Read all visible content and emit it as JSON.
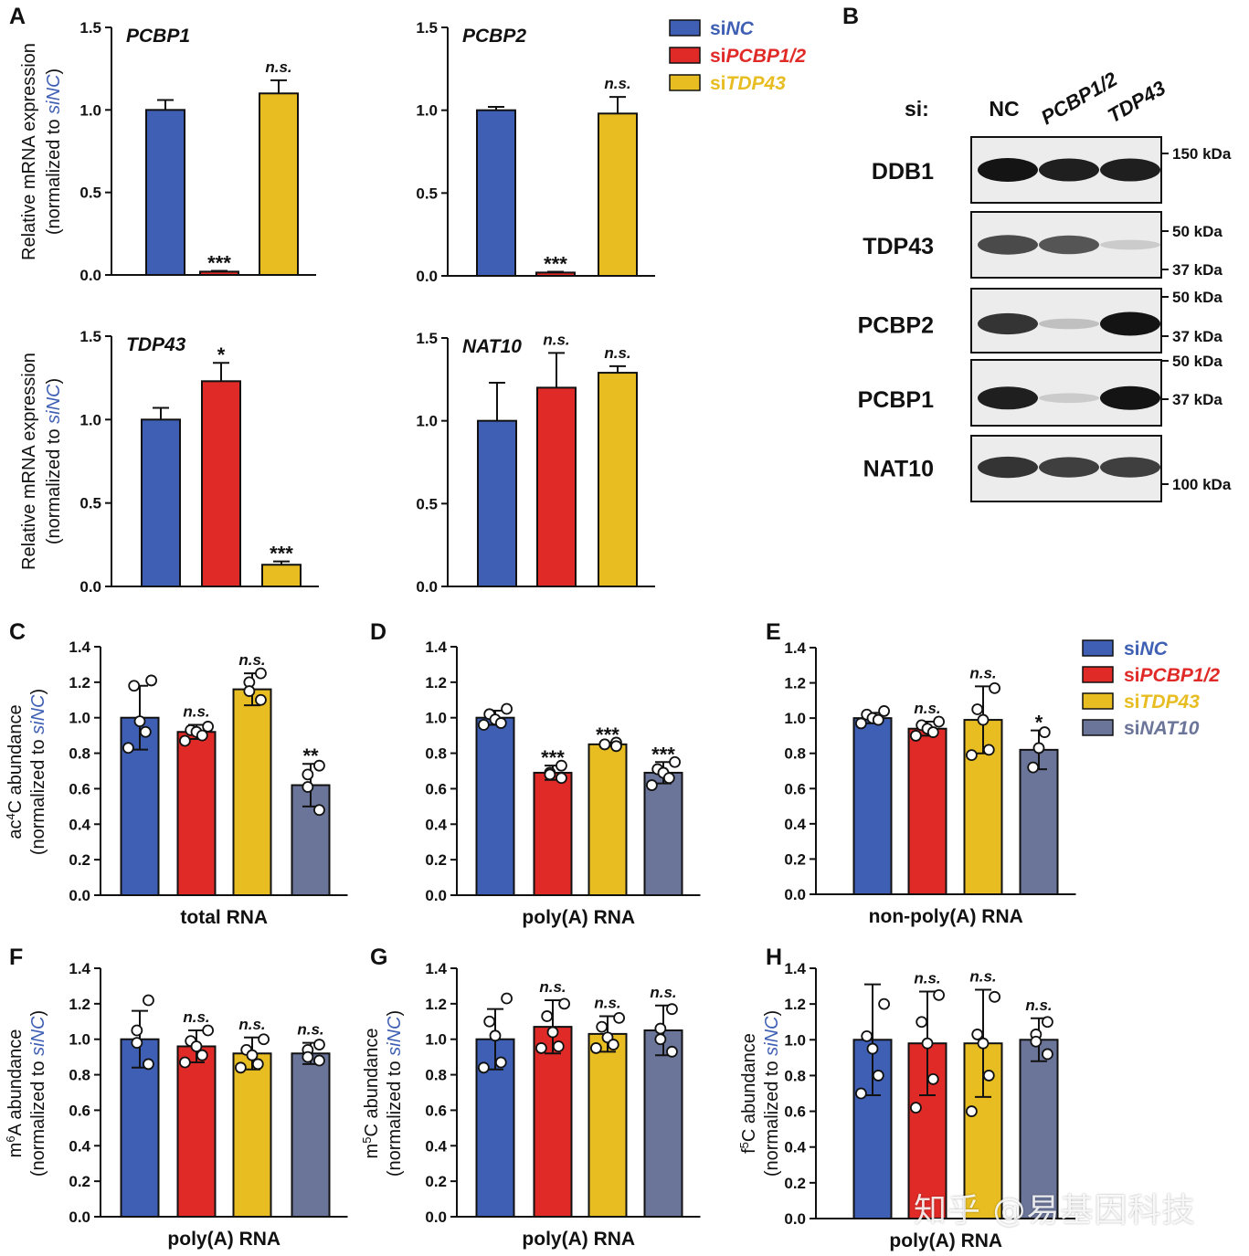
{
  "colors": {
    "NC": "#3f5fb4",
    "PCBP12": "#e02a27",
    "TDP43": "#e8bd22",
    "NAT10": "#6b7599"
  },
  "legend_A": [
    {
      "key": "NC",
      "pre": "si",
      "gene": "NC"
    },
    {
      "key": "PCBP12",
      "pre": "si",
      "gene": "PCBP1/2"
    },
    {
      "key": "TDP43",
      "pre": "si",
      "gene": "TDP43"
    }
  ],
  "legend_CE": [
    {
      "key": "NC",
      "pre": "si",
      "gene": "NC"
    },
    {
      "key": "PCBP12",
      "pre": "si",
      "gene": "PCBP1/2"
    },
    {
      "key": "TDP43",
      "pre": "si",
      "gene": "TDP43"
    },
    {
      "key": "NAT10",
      "pre": "si",
      "gene": "NAT10"
    }
  ],
  "panel_letters": [
    "A",
    "B",
    "C",
    "D",
    "E",
    "F",
    "G",
    "H"
  ],
  "ylabel_A": {
    "l1": "Relative mRNA expression",
    "l2a": "(normalized to ",
    "l2b": "siNC",
    "l2c": ")"
  },
  "blot": {
    "si_label": "si:",
    "lanes": [
      "NC",
      "PCBP1/2",
      "TDP43"
    ],
    "rows": [
      {
        "name": "DDB1",
        "markers": [
          "150 kDa"
        ],
        "intens": [
          1,
          0.95,
          0.95
        ]
      },
      {
        "name": "TDP43",
        "markers": [
          "50 kDa",
          "37 kDa"
        ],
        "intens": [
          0.75,
          0.7,
          0.15
        ]
      },
      {
        "name": "PCBP2",
        "markers": [
          "50 kDa",
          "37 kDa"
        ],
        "intens": [
          0.85,
          0.2,
          1
        ]
      },
      {
        "name": "PCBP1",
        "markers": [
          "50 kDa",
          "37 kDa"
        ],
        "intens": [
          0.95,
          0.15,
          1
        ]
      },
      {
        "name": "NAT10",
        "markers": [
          "100 kDa"
        ],
        "intens": [
          0.85,
          0.8,
          0.8
        ]
      }
    ]
  },
  "watermark": "知乎 @易基因科技",
  "chart_data": [
    {
      "id": "A1",
      "type": "bar",
      "title": "PCBP1",
      "ylim": [
        0,
        1.5
      ],
      "yticks": [
        "0.0",
        "0.5",
        "1.0",
        "1.5"
      ],
      "series": [
        {
          "key": "NC",
          "value": 1.0,
          "err": 0.06,
          "sig": ""
        },
        {
          "key": "PCBP12",
          "value": 0.02,
          "err": 0.005,
          "sig": "***"
        },
        {
          "key": "TDP43",
          "value": 1.1,
          "err": 0.08,
          "sig": "n.s."
        }
      ]
    },
    {
      "id": "A2",
      "type": "bar",
      "title": "PCBP2",
      "ylim": [
        0,
        1.5
      ],
      "yticks": [
        "0.0",
        "0.5",
        "1.0",
        "1.5"
      ],
      "series": [
        {
          "key": "NC",
          "value": 1.0,
          "err": 0.02,
          "sig": ""
        },
        {
          "key": "PCBP12",
          "value": 0.02,
          "err": 0.005,
          "sig": "***"
        },
        {
          "key": "TDP43",
          "value": 0.98,
          "err": 0.1,
          "sig": "n.s."
        }
      ]
    },
    {
      "id": "A3",
      "type": "bar",
      "title": "TDP43",
      "ylim": [
        0,
        1.5
      ],
      "yticks": [
        "0.0",
        "0.5",
        "1.0",
        "1.5"
      ],
      "series": [
        {
          "key": "NC",
          "value": 1.0,
          "err": 0.07,
          "sig": ""
        },
        {
          "key": "PCBP12",
          "value": 1.23,
          "err": 0.11,
          "sig": "*"
        },
        {
          "key": "TDP43",
          "value": 0.13,
          "err": 0.02,
          "sig": "***"
        }
      ]
    },
    {
      "id": "A4",
      "type": "bar",
      "title": "NAT10",
      "ylim": [
        0,
        1.5
      ],
      "yticks": [
        "0.0",
        "0.5",
        "1.0",
        "1.5"
      ],
      "series": [
        {
          "key": "NC",
          "value": 1.0,
          "err": 0.23,
          "sig": ""
        },
        {
          "key": "PCBP12",
          "value": 1.2,
          "err": 0.21,
          "sig": "n.s."
        },
        {
          "key": "TDP43",
          "value": 1.29,
          "err": 0.04,
          "sig": "n.s."
        }
      ]
    },
    {
      "id": "C",
      "type": "bar",
      "xlabel": "total RNA",
      "ylabel_pre": "ac",
      "ylabel_sup": "4",
      "ylabel_post": "C abundance",
      "ylim": [
        0,
        1.4
      ],
      "yticks": [
        "0.0",
        "0.2",
        "0.4",
        "0.6",
        "0.8",
        "1.0",
        "1.2",
        "1.4"
      ],
      "series": [
        {
          "key": "NC",
          "value": 1.0,
          "err": 0.18,
          "sig": "",
          "points": [
            1.21,
            1.18,
            0.98,
            0.92,
            0.83
          ]
        },
        {
          "key": "PCBP12",
          "value": 0.92,
          "err": 0.04,
          "sig": "n.s.",
          "points": [
            0.95,
            0.93,
            0.92,
            0.9,
            0.87
          ]
        },
        {
          "key": "TDP43",
          "value": 1.16,
          "err": 0.09,
          "sig": "n.s.",
          "points": [
            1.25,
            1.2,
            1.15,
            1.1
          ]
        },
        {
          "key": "NAT10",
          "value": 0.62,
          "err": 0.12,
          "sig": "**",
          "points": [
            0.73,
            0.68,
            0.61,
            0.48
          ]
        }
      ]
    },
    {
      "id": "D",
      "type": "bar",
      "xlabel": "poly(A) RNA",
      "ylim": [
        0,
        1.4
      ],
      "yticks": [
        "0.0",
        "0.2",
        "0.4",
        "0.6",
        "0.8",
        "1.0",
        "1.2",
        "1.4"
      ],
      "series": [
        {
          "key": "NC",
          "value": 1.0,
          "err": 0.04,
          "sig": "",
          "points": [
            1.05,
            1.02,
            0.99,
            0.97,
            0.96
          ]
        },
        {
          "key": "PCBP12",
          "value": 0.69,
          "err": 0.04,
          "sig": "***",
          "points": [
            0.73,
            0.69,
            0.68,
            0.66
          ]
        },
        {
          "key": "TDP43",
          "value": 0.85,
          "err": 0.01,
          "sig": "***",
          "points": [
            0.86,
            0.85,
            0.85,
            0.84
          ]
        },
        {
          "key": "NAT10",
          "value": 0.69,
          "err": 0.06,
          "sig": "***",
          "points": [
            0.75,
            0.71,
            0.69,
            0.66,
            0.62
          ]
        }
      ]
    },
    {
      "id": "E",
      "type": "bar",
      "xlabel": "non-poly(A) RNA",
      "ylim": [
        0,
        1.4
      ],
      "yticks": [
        "0.0",
        "0.2",
        "0.4",
        "0.6",
        "0.8",
        "1.0",
        "1.2",
        "1.4"
      ],
      "series": [
        {
          "key": "NC",
          "value": 1.0,
          "err": 0.03,
          "sig": "",
          "points": [
            1.04,
            1.02,
            1.0,
            0.99,
            0.97
          ]
        },
        {
          "key": "PCBP12",
          "value": 0.94,
          "err": 0.04,
          "sig": "n.s.",
          "points": [
            0.98,
            0.96,
            0.94,
            0.92,
            0.9
          ]
        },
        {
          "key": "TDP43",
          "value": 0.99,
          "err": 0.19,
          "sig": "n.s.",
          "points": [
            1.17,
            1.05,
            0.99,
            0.82,
            0.79
          ]
        },
        {
          "key": "NAT10",
          "value": 0.82,
          "err": 0.11,
          "sig": "*",
          "points": [
            0.92,
            0.83,
            0.72
          ]
        }
      ]
    },
    {
      "id": "F",
      "type": "bar",
      "xlabel": "poly(A) RNA",
      "ylabel_pre": "m",
      "ylabel_sup": "6",
      "ylabel_post": "A abundance",
      "ylim": [
        0,
        1.4
      ],
      "yticks": [
        "0.0",
        "0.2",
        "0.4",
        "0.6",
        "0.8",
        "1.0",
        "1.2",
        "1.4"
      ],
      "series": [
        {
          "key": "NC",
          "value": 1.0,
          "err": 0.16,
          "sig": "",
          "points": [
            1.22,
            1.05,
            0.98,
            0.86
          ]
        },
        {
          "key": "PCBP12",
          "value": 0.96,
          "err": 0.09,
          "sig": "n.s.",
          "points": [
            1.05,
            0.99,
            0.96,
            0.91,
            0.87
          ]
        },
        {
          "key": "TDP43",
          "value": 0.92,
          "err": 0.09,
          "sig": "n.s.",
          "points": [
            1.0,
            0.94,
            0.91,
            0.86,
            0.84
          ]
        },
        {
          "key": "NAT10",
          "value": 0.92,
          "err": 0.06,
          "sig": "n.s.",
          "points": [
            0.97,
            0.94,
            0.9,
            0.88
          ]
        }
      ]
    },
    {
      "id": "G",
      "type": "bar",
      "xlabel": "poly(A) RNA",
      "ylabel_pre": "m",
      "ylabel_sup": "5",
      "ylabel_post": "C abundance",
      "ylim": [
        0,
        1.4
      ],
      "yticks": [
        "0.0",
        "0.2",
        "0.4",
        "0.6",
        "0.8",
        "1.0",
        "1.2",
        "1.4"
      ],
      "series": [
        {
          "key": "NC",
          "value": 1.0,
          "err": 0.17,
          "sig": "",
          "points": [
            1.23,
            1.1,
            1.02,
            0.87,
            0.84
          ]
        },
        {
          "key": "PCBP12",
          "value": 1.07,
          "err": 0.15,
          "sig": "n.s.",
          "points": [
            1.2,
            1.13,
            1.04,
            0.96,
            0.95
          ]
        },
        {
          "key": "TDP43",
          "value": 1.03,
          "err": 0.1,
          "sig": "n.s.",
          "points": [
            1.12,
            1.07,
            1.01,
            0.97,
            0.95
          ]
        },
        {
          "key": "NAT10",
          "value": 1.05,
          "err": 0.14,
          "sig": "n.s.",
          "points": [
            1.17,
            1.06,
            1.0,
            0.93
          ]
        }
      ]
    },
    {
      "id": "H",
      "type": "bar",
      "xlabel": "poly(A) RNA",
      "ylabel_pre": "f",
      "ylabel_sup": "5",
      "ylabel_post": "C abundance",
      "ylim": [
        0,
        1.4
      ],
      "yticks": [
        "0.0",
        "0.2",
        "0.4",
        "0.6",
        "0.8",
        "1.0",
        "1.2",
        "1.4"
      ],
      "series": [
        {
          "key": "NC",
          "value": 1.0,
          "err": 0.31,
          "sig": "",
          "points": [
            1.2,
            1.02,
            0.95,
            0.8,
            0.7
          ]
        },
        {
          "key": "PCBP12",
          "value": 0.98,
          "err": 0.29,
          "sig": "n.s.",
          "points": [
            1.25,
            1.1,
            0.98,
            0.78,
            0.62
          ]
        },
        {
          "key": "TDP43",
          "value": 0.98,
          "err": 0.3,
          "sig": "n.s.",
          "points": [
            1.24,
            1.03,
            0.98,
            0.8,
            0.6
          ]
        },
        {
          "key": "NAT10",
          "value": 1.0,
          "err": 0.12,
          "sig": "n.s.",
          "points": [
            1.1,
            1.03,
            0.99,
            0.92
          ]
        }
      ]
    }
  ]
}
